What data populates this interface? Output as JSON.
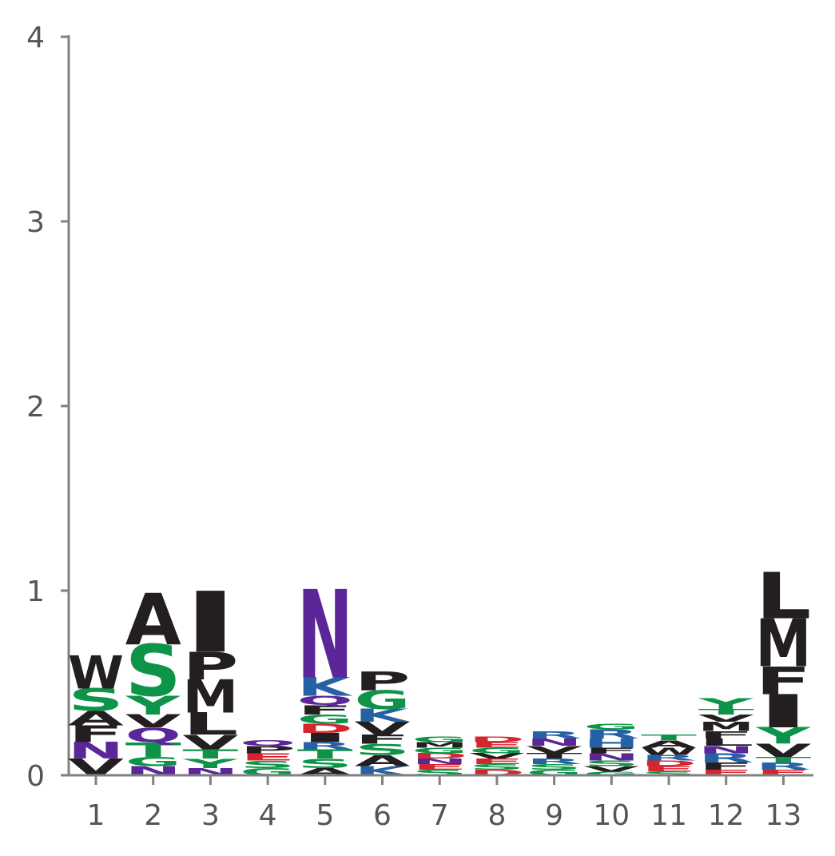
{
  "colors": {
    "black": "#231f20",
    "green": "#0d9448",
    "purple": "#5b2697",
    "blue": "#2761a5",
    "red": "#d5252f",
    "axis": "#808080",
    "tick_text": "#555555"
  },
  "chart_data": {
    "type": "sequence_logo",
    "title": "",
    "xlabel": "",
    "ylabel": "",
    "ylim": [
      0,
      4
    ],
    "y_ticks": [
      "0",
      "1",
      "2",
      "3",
      "4"
    ],
    "positions": [
      "1",
      "2",
      "3",
      "4",
      "5",
      "6",
      "7",
      "8",
      "9",
      "10",
      "11",
      "12",
      "13"
    ],
    "stacks": [
      [
        [
          "V",
          0.09,
          "black"
        ],
        [
          "N",
          0.09,
          "purple"
        ],
        [
          "F",
          0.09,
          "black"
        ],
        [
          "A",
          0.08,
          "black"
        ],
        [
          "S",
          0.12,
          "green"
        ],
        [
          "W",
          0.18,
          "black"
        ]
      ],
      [
        [
          "N",
          0.05,
          "purple"
        ],
        [
          "G",
          0.05,
          "green"
        ],
        [
          "T",
          0.08,
          "green"
        ],
        [
          "Q",
          0.08,
          "purple"
        ],
        [
          "V",
          0.07,
          "black"
        ],
        [
          "Y",
          0.1,
          "green"
        ],
        [
          "S",
          0.28,
          "green"
        ],
        [
          "A",
          0.28,
          "black"
        ]
      ],
      [
        [
          "N",
          0.04,
          "purple"
        ],
        [
          "Y",
          0.05,
          "green"
        ],
        [
          "T",
          0.05,
          "green"
        ],
        [
          "V",
          0.08,
          "black"
        ],
        [
          "L",
          0.12,
          "black"
        ],
        [
          "M",
          0.18,
          "black"
        ],
        [
          "P",
          0.15,
          "black"
        ],
        [
          "I",
          0.33,
          "black"
        ]
      ],
      [
        [
          "G",
          0.04,
          "green"
        ],
        [
          "S",
          0.04,
          "green"
        ],
        [
          "E",
          0.04,
          "red"
        ],
        [
          "P",
          0.04,
          "black"
        ],
        [
          "Q",
          0.03,
          "purple"
        ]
      ],
      [
        [
          "A",
          0.04,
          "black"
        ],
        [
          "S",
          0.05,
          "green"
        ],
        [
          "T",
          0.05,
          "green"
        ],
        [
          "R",
          0.04,
          "blue"
        ],
        [
          "I",
          0.05,
          "black"
        ],
        [
          "D",
          0.05,
          "red"
        ],
        [
          "G",
          0.05,
          "green"
        ],
        [
          "F",
          0.05,
          "black"
        ],
        [
          "Q",
          0.05,
          "purple"
        ],
        [
          "K",
          0.1,
          "blue"
        ],
        [
          "N",
          0.48,
          "purple"
        ]
      ],
      [
        [
          "K",
          0.05,
          "blue"
        ],
        [
          "A",
          0.06,
          "black"
        ],
        [
          "S",
          0.06,
          "green"
        ],
        [
          "F",
          0.05,
          "black"
        ],
        [
          "V",
          0.07,
          "black"
        ],
        [
          "K",
          0.07,
          "blue"
        ],
        [
          "G",
          0.1,
          "green"
        ],
        [
          "P",
          0.1,
          "black"
        ]
      ],
      [
        [
          "S",
          0.03,
          "green"
        ],
        [
          "E",
          0.03,
          "red"
        ],
        [
          "N",
          0.03,
          "purple"
        ],
        [
          "D",
          0.03,
          "red"
        ],
        [
          "G",
          0.03,
          "green"
        ],
        [
          "M",
          0.03,
          "black"
        ],
        [
          "G",
          0.03,
          "green"
        ]
      ],
      [
        [
          "D",
          0.03,
          "red"
        ],
        [
          "S",
          0.03,
          "green"
        ],
        [
          "E",
          0.03,
          "red"
        ],
        [
          "V",
          0.03,
          "black"
        ],
        [
          "G",
          0.03,
          "green"
        ],
        [
          "E",
          0.03,
          "red"
        ],
        [
          "D",
          0.03,
          "red"
        ]
      ],
      [
        [
          "G",
          0.03,
          "green"
        ],
        [
          "S",
          0.03,
          "green"
        ],
        [
          "R",
          0.03,
          "blue"
        ],
        [
          "T",
          0.03,
          "black"
        ],
        [
          "V",
          0.04,
          "black"
        ],
        [
          "N",
          0.04,
          "purple"
        ],
        [
          "R",
          0.04,
          "blue"
        ]
      ],
      [
        [
          "G",
          0.02,
          "green"
        ],
        [
          "V",
          0.03,
          "black"
        ],
        [
          "S",
          0.03,
          "green"
        ],
        [
          "N",
          0.04,
          "purple"
        ],
        [
          "F",
          0.03,
          "black"
        ],
        [
          "H",
          0.05,
          "blue"
        ],
        [
          "R",
          0.05,
          "blue"
        ],
        [
          "G",
          0.03,
          "green"
        ]
      ],
      [
        [
          "S",
          0.02,
          "green"
        ],
        [
          "E",
          0.03,
          "red"
        ],
        [
          "D",
          0.03,
          "red"
        ],
        [
          "R",
          0.03,
          "blue"
        ],
        [
          "W",
          0.04,
          "black"
        ],
        [
          "A",
          0.04,
          "black"
        ],
        [
          "T",
          0.03,
          "green"
        ]
      ],
      [
        [
          "E",
          0.03,
          "red"
        ],
        [
          "F",
          0.04,
          "black"
        ],
        [
          "R",
          0.05,
          "blue"
        ],
        [
          "N",
          0.04,
          "purple"
        ],
        [
          "L",
          0.04,
          "black"
        ],
        [
          "F",
          0.04,
          "black"
        ],
        [
          "M",
          0.05,
          "black"
        ],
        [
          "V",
          0.04,
          "black"
        ],
        [
          "T",
          0.03,
          "green"
        ],
        [
          "Y",
          0.06,
          "green"
        ]
      ],
      [
        [
          "E",
          0.03,
          "red"
        ],
        [
          "R",
          0.04,
          "blue"
        ],
        [
          "T",
          0.03,
          "green"
        ],
        [
          "V",
          0.07,
          "black"
        ],
        [
          "Y",
          0.09,
          "green"
        ],
        [
          "I",
          0.18,
          "black"
        ],
        [
          "F",
          0.15,
          "black"
        ],
        [
          "M",
          0.26,
          "black"
        ],
        [
          "L",
          0.25,
          "black"
        ]
      ]
    ]
  }
}
